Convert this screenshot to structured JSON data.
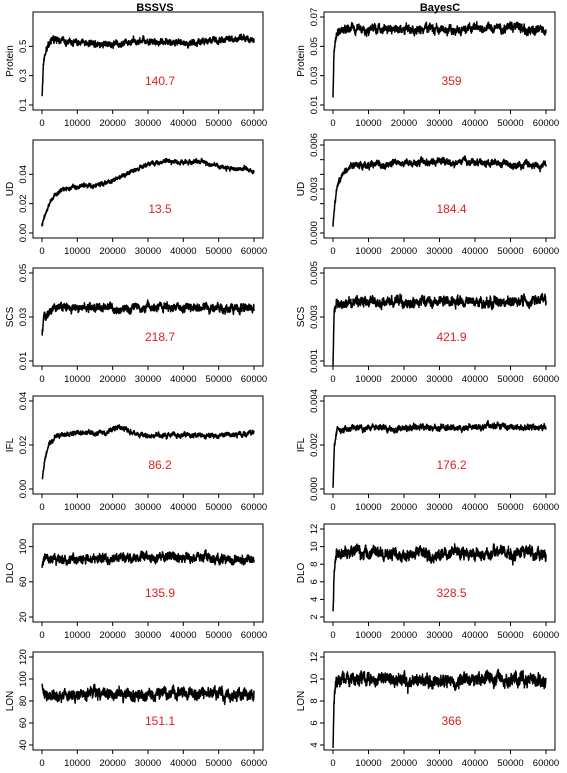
{
  "columns": [
    "BSSVS",
    "BayesC"
  ],
  "x_ticks": [
    "0",
    "10000",
    "20000",
    "30000",
    "40000",
    "50000",
    "60000"
  ],
  "chart_data": [
    {
      "type": "line",
      "panel": "bssvs-protein",
      "ylabel": "Protein",
      "annotation": "140.7",
      "ylim": [
        0.1,
        0.7
      ],
      "y_ticks": [
        0.1,
        0.3,
        0.5
      ],
      "xlim": [
        0,
        60000
      ],
      "trace": {
        "x": [
          0,
          400,
          800,
          1500,
          2500,
          4000,
          6000,
          10000,
          20000,
          30000,
          40000,
          50000,
          60000
        ],
        "y": [
          0.15,
          0.38,
          0.45,
          0.5,
          0.53,
          0.55,
          0.54,
          0.53,
          0.53,
          0.54,
          0.53,
          0.54,
          0.55
        ]
      },
      "noise": 0.03
    },
    {
      "type": "line",
      "panel": "bssvs-ud",
      "ylabel": "UD",
      "annotation": "13.5",
      "ylim": [
        0.0,
        0.06
      ],
      "y_ticks": [
        0.0,
        0.02,
        0.04
      ],
      "xlim": [
        0,
        60000
      ],
      "trace": {
        "x": [
          0,
          1000,
          2500,
          5000,
          8000,
          12000,
          16000,
          19000,
          22000,
          26000,
          30000,
          35000,
          40000,
          44000,
          48000,
          52000,
          56000,
          60000
        ],
        "y": [
          0.005,
          0.013,
          0.022,
          0.028,
          0.031,
          0.032,
          0.032,
          0.034,
          0.038,
          0.043,
          0.046,
          0.049,
          0.048,
          0.05,
          0.047,
          0.045,
          0.044,
          0.042
        ]
      },
      "noise": 0.002
    },
    {
      "type": "line",
      "panel": "bssvs-scs",
      "ylabel": "SCS",
      "annotation": "218.7",
      "ylim": [
        0.01,
        0.05
      ],
      "y_ticks": [
        0.01,
        0.03,
        0.05
      ],
      "xlim": [
        0,
        60000
      ],
      "trace": {
        "x": [
          0,
          500,
          1500,
          3000,
          10000,
          30000,
          50000,
          60000
        ],
        "y": [
          0.021,
          0.029,
          0.032,
          0.034,
          0.034,
          0.034,
          0.034,
          0.034
        ]
      },
      "noise": 0.0025
    },
    {
      "type": "line",
      "panel": "bssvs-ifl",
      "ylabel": "IFL",
      "annotation": "86.2",
      "ylim": [
        0.0,
        0.04
      ],
      "y_ticks": [
        0.0,
        0.02,
        0.04
      ],
      "xlim": [
        0,
        60000
      ],
      "trace": {
        "x": [
          0,
          800,
          2000,
          4000,
          10000,
          18000,
          22000,
          26000,
          30000,
          40000,
          50000,
          60000
        ],
        "y": [
          0.004,
          0.013,
          0.02,
          0.024,
          0.025,
          0.025,
          0.028,
          0.025,
          0.024,
          0.024,
          0.024,
          0.025
        ]
      },
      "noise": 0.0015
    },
    {
      "type": "line",
      "panel": "bssvs-dlo",
      "ylabel": "DLO",
      "annotation": "135.9",
      "ylim": [
        20,
        120
      ],
      "y_ticks": [
        20,
        60,
        100
      ],
      "xlim": [
        0,
        60000
      ],
      "trace": {
        "x": [
          0,
          500,
          2000,
          10000,
          30000,
          50000,
          60000
        ],
        "y": [
          75,
          85,
          88,
          88,
          87,
          86,
          85
        ]
      },
      "noise": 7
    },
    {
      "type": "line",
      "panel": "bssvs-lon",
      "ylabel": "LON",
      "annotation": "151.1",
      "ylim": [
        40,
        120
      ],
      "y_ticks": [
        40,
        60,
        80,
        100,
        120
      ],
      "xlim": [
        0,
        60000
      ],
      "trace": {
        "x": [
          0,
          500,
          2000,
          10000,
          30000,
          50000,
          60000
        ],
        "y": [
          92,
          88,
          87,
          86,
          86,
          85,
          84
        ]
      },
      "noise": 7
    },
    {
      "type": "line",
      "panel": "bayesc-protein",
      "ylabel": "Protein",
      "annotation": "359",
      "ylim": [
        0.01,
        0.07
      ],
      "y_ticks": [
        0.01,
        0.03,
        0.05,
        0.07
      ],
      "xlim": [
        0,
        60000
      ],
      "trace": {
        "x": [
          0,
          300,
          800,
          1500,
          3000,
          10000,
          30000,
          60000
        ],
        "y": [
          0.015,
          0.045,
          0.055,
          0.06,
          0.062,
          0.062,
          0.061,
          0.062
        ]
      },
      "noise": 0.004
    },
    {
      "type": "line",
      "panel": "bayesc-ud",
      "ylabel": "UD",
      "annotation": "184.4",
      "ylim": [
        0.0,
        0.006
      ],
      "y_ticks": [
        0.0,
        0.001,
        0.002,
        0.003,
        0.004,
        0.005,
        0.006
      ],
      "y_tick_labels": [
        "0.000",
        "",
        "",
        "0.003",
        "",
        "",
        "0.006"
      ],
      "xlim": [
        0,
        60000
      ],
      "trace": {
        "x": [
          0,
          400,
          1000,
          2500,
          5000,
          10000,
          20000,
          40000,
          60000
        ],
        "y": [
          0.0003,
          0.0018,
          0.003,
          0.004,
          0.0045,
          0.0047,
          0.0048,
          0.0048,
          0.0047
        ]
      },
      "noise": 0.0003
    },
    {
      "type": "line",
      "panel": "bayesc-scs",
      "ylabel": "SCS",
      "annotation": "421.9",
      "ylim": [
        0.001,
        0.005
      ],
      "y_ticks": [
        0.001,
        0.003,
        0.005
      ],
      "xlim": [
        0,
        60000
      ],
      "trace": {
        "x": [
          0,
          300,
          800,
          1500,
          10000,
          30000,
          60000
        ],
        "y": [
          0.001,
          0.0032,
          0.0037,
          0.0037,
          0.0037,
          0.0037,
          0.0037
        ]
      },
      "noise": 0.0003
    },
    {
      "type": "line",
      "panel": "bayesc-ifl",
      "ylabel": "IFL",
      "annotation": "176.2",
      "ylim": [
        0.0,
        0.004
      ],
      "y_ticks": [
        0.0,
        0.002,
        0.004
      ],
      "xlim": [
        0,
        60000
      ],
      "trace": {
        "x": [
          0,
          400,
          1200,
          3000,
          10000,
          30000,
          50000,
          60000
        ],
        "y": [
          0.0001,
          0.002,
          0.0027,
          0.0028,
          0.0028,
          0.0028,
          0.0029,
          0.0028
        ]
      },
      "noise": 0.00018
    },
    {
      "type": "line",
      "panel": "bayesc-dlo",
      "ylabel": "DLO",
      "annotation": "328.5",
      "ylim": [
        2,
        12
      ],
      "y_ticks": [
        2,
        4,
        6,
        8,
        10,
        12
      ],
      "xlim": [
        0,
        60000
      ],
      "trace": {
        "x": [
          0,
          300,
          800,
          2000,
          10000,
          30000,
          60000
        ],
        "y": [
          2.5,
          7,
          9,
          9.3,
          9.3,
          9.2,
          9.3
        ]
      },
      "noise": 0.9
    },
    {
      "type": "line",
      "panel": "bayesc-lon",
      "ylabel": "LON",
      "annotation": "366",
      "ylim": [
        4,
        12
      ],
      "y_ticks": [
        4,
        6,
        8,
        10,
        12
      ],
      "xlim": [
        0,
        60000
      ],
      "trace": {
        "x": [
          0,
          300,
          800,
          2000,
          10000,
          30000,
          60000
        ],
        "y": [
          4,
          8,
          9.5,
          10,
          10,
          9.9,
          9.9
        ]
      },
      "noise": 0.8
    }
  ]
}
